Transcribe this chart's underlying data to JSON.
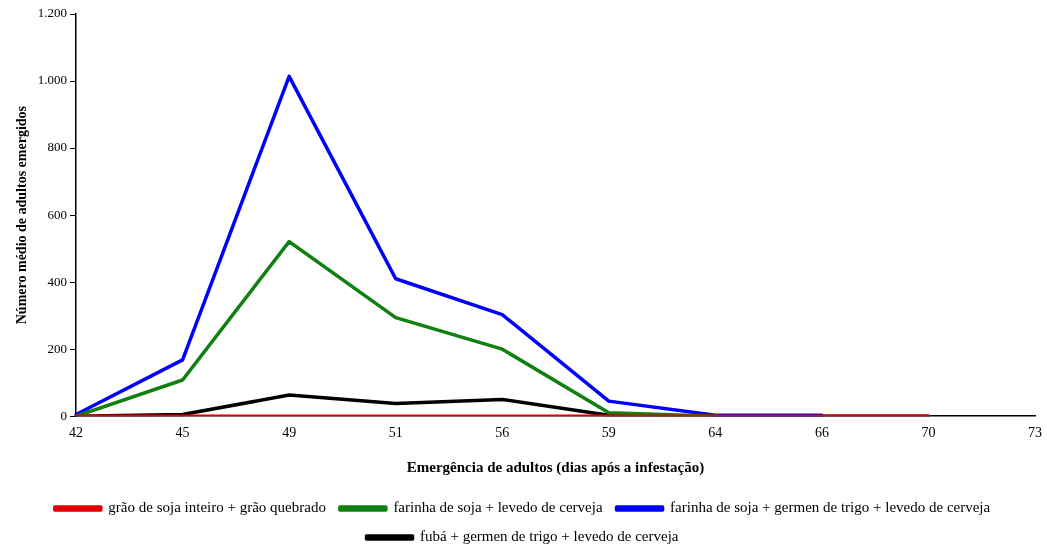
{
  "chart_data": {
    "type": "line",
    "xlabel": "Emergência de adultos (dias após a infestação)",
    "ylabel": "Número médio de adultos emergidos",
    "categories": [
      "42",
      "45",
      "49",
      "51",
      "56",
      "59",
      "64",
      "66",
      "70",
      "73"
    ],
    "ylim": [
      0,
      1200
    ],
    "yticks": [
      0,
      200,
      400,
      600,
      800,
      {
        "value": 1000,
        "label": "1.000"
      },
      {
        "value": 1200,
        "label": "1.200"
      }
    ],
    "grid": false,
    "legend": "bottom",
    "marker": "none",
    "line_style": "solid",
    "series": [
      {
        "name": "grão de soja inteiro + grão quebrado",
        "color": "#e00000",
        "values": [
          0,
          0,
          0,
          0,
          0,
          0,
          0,
          0,
          0,
          null
        ]
      },
      {
        "name": "farinha de soja + levedo de cerveja",
        "color": "#108010",
        "values": [
          0,
          108,
          521,
          294,
          200,
          10,
          0,
          null,
          null,
          null
        ]
      },
      {
        "name": "farinha de soja + germen de trigo + levedo de cerveja",
        "color": "#0000ff",
        "values": [
          5,
          168,
          1014,
          410,
          303,
          45,
          3,
          3,
          null,
          null
        ]
      },
      {
        "name": "fubá + germen de trigo + levedo de cerveja",
        "color": "#000000",
        "values": [
          0,
          5,
          63,
          38,
          50,
          3,
          0,
          0,
          0,
          null
        ]
      }
    ]
  }
}
